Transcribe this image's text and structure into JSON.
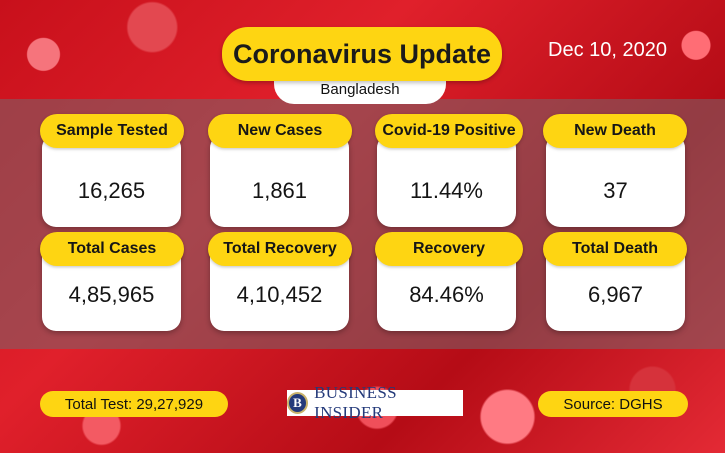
{
  "header": {
    "title": "Coronavirus Update",
    "country": "Bangladesh",
    "date": "Dec 10, 2020"
  },
  "stats": [
    {
      "label": "Sample Tested",
      "value": "16,265"
    },
    {
      "label": "New Cases",
      "value": "1,861"
    },
    {
      "label": "Covid-19 Positive",
      "value": "11.44%"
    },
    {
      "label": "New Death",
      "value": "37"
    },
    {
      "label": "Total Cases",
      "value": "4,85,965"
    },
    {
      "label": "Total Recovery",
      "value": "4,10,452"
    },
    {
      "label": "Recovery",
      "value": "84.46%"
    },
    {
      "label": "Total Death",
      "value": "6,967"
    }
  ],
  "footer": {
    "total_test": "Total Test:  29,27,929",
    "logo_mark": "B",
    "logo_text": "BUSINESS INSIDER",
    "source": "Source: DGHS"
  },
  "colors": {
    "accent_yellow": "#fed512",
    "background_red": "#d01a24",
    "logo_blue": "#243a7a"
  }
}
